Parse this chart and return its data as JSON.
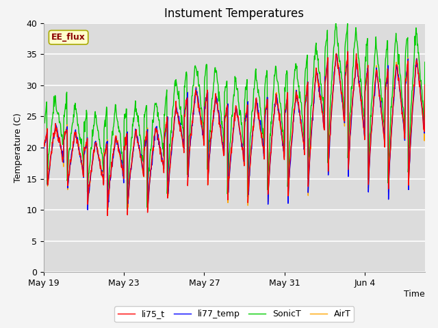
{
  "title": "Instument Temperatures",
  "xlabel": "Time",
  "ylabel": "Temperature (C)",
  "ylim": [
    0,
    40
  ],
  "yticks": [
    0,
    5,
    10,
    15,
    20,
    25,
    30,
    35,
    40
  ],
  "xtick_labels": [
    "May 19",
    "May 23",
    "May 27",
    "May 31",
    "Jun 4"
  ],
  "series_colors": {
    "li75_t": "#ff0000",
    "li77_temp": "#0000ff",
    "SonicT": "#00cc00",
    "AirT": "#ffa500"
  },
  "annotation_text": "EE_flux",
  "background_color": "#dcdcdc",
  "plot_bg_color": "#dcdcdc",
  "title_fontsize": 12,
  "label_fontsize": 9,
  "tick_fontsize": 9,
  "legend_fontsize": 9,
  "line_width": 1.0
}
